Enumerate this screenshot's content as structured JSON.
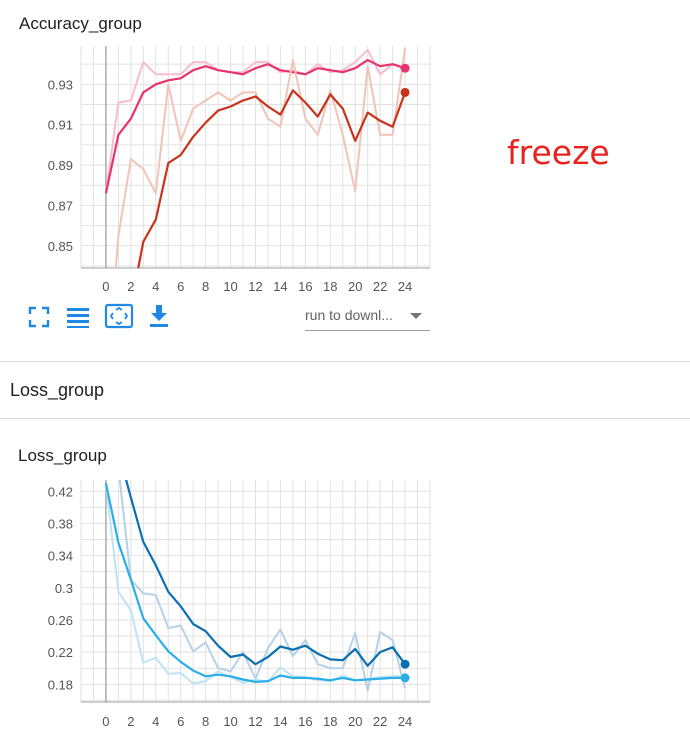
{
  "accuracy_card": {
    "title": "Accuracy_group"
  },
  "toolbar": {
    "fullscreen_icon": "fullscreen-icon",
    "legend_icon": "legend-list-icon",
    "fit_icon": "fit-domain-icon",
    "download_icon": "download-icon",
    "download_select_value": "run to downl..."
  },
  "annotation": {
    "text": "freeze",
    "color": "#e8231f"
  },
  "loss_section": {
    "title": "Loss_group"
  },
  "loss_card": {
    "title": "Loss_group"
  },
  "colors": {
    "accent": "#2196f3",
    "icon": "#1e88e5"
  },
  "chart_data": [
    {
      "type": "line",
      "title": "Accuracy_group",
      "xlabel": "",
      "ylabel": "",
      "xlim": [
        -2,
        26
      ],
      "ylim": [
        0.839,
        0.949
      ],
      "x_ticks": [
        0,
        2,
        4,
        6,
        8,
        10,
        12,
        14,
        16,
        18,
        20,
        22,
        24
      ],
      "y_ticks": [
        0.85,
        0.87,
        0.89,
        0.91,
        0.93
      ],
      "y_tick_labels": [
        "0.85",
        "0.87",
        "0.89",
        "0.91",
        "0.93"
      ],
      "grid": true,
      "series": [
        {
          "color": "#e8336d",
          "raw_color": "#f8bbd0",
          "x": [
            0,
            1,
            2,
            3,
            4,
            5,
            6,
            7,
            8,
            9,
            10,
            11,
            12,
            13,
            14,
            15,
            16,
            17,
            18,
            19,
            20,
            21,
            22,
            23,
            24
          ],
          "raw": [
            0.876,
            0.921,
            0.922,
            0.941,
            0.935,
            0.935,
            0.935,
            0.941,
            0.941,
            0.937,
            0.936,
            0.936,
            0.941,
            0.941,
            0.936,
            0.937,
            0.935,
            0.94,
            0.936,
            0.937,
            0.941,
            0.947,
            0.935,
            0.94,
            0.938
          ],
          "smoothed": [
            0.876,
            0.905,
            0.913,
            0.926,
            0.93,
            0.932,
            0.933,
            0.937,
            0.939,
            0.937,
            0.936,
            0.935,
            0.938,
            0.94,
            0.937,
            0.936,
            0.935,
            0.938,
            0.937,
            0.936,
            0.938,
            0.942,
            0.939,
            0.94,
            0.938
          ]
        },
        {
          "color": "#c8341b",
          "raw_color": "#f1c4b8",
          "x": [
            0,
            1,
            2,
            3,
            4,
            5,
            6,
            7,
            8,
            9,
            10,
            11,
            12,
            13,
            14,
            15,
            16,
            17,
            18,
            19,
            20,
            21,
            22,
            23,
            24
          ],
          "raw": [
            0.78,
            0.855,
            0.893,
            0.888,
            0.876,
            0.93,
            0.902,
            0.918,
            0.922,
            0.926,
            0.922,
            0.926,
            0.926,
            0.913,
            0.909,
            0.942,
            0.913,
            0.905,
            0.927,
            0.905,
            0.877,
            0.939,
            0.905,
            0.905,
            0.948
          ],
          "smoothed": [
            0.78,
            0.8,
            0.82,
            0.852,
            0.863,
            0.891,
            0.895,
            0.904,
            0.911,
            0.917,
            0.919,
            0.922,
            0.924,
            0.919,
            0.915,
            0.927,
            0.921,
            0.914,
            0.925,
            0.918,
            0.902,
            0.916,
            0.912,
            0.909,
            0.926
          ]
        }
      ]
    },
    {
      "type": "line",
      "title": "Loss_group",
      "xlabel": "",
      "ylabel": "",
      "xlim": [
        -2,
        26
      ],
      "ylim": [
        0.158,
        0.434
      ],
      "x_ticks": [
        0,
        2,
        4,
        6,
        8,
        10,
        12,
        14,
        16,
        18,
        20,
        22,
        24
      ],
      "y_ticks": [
        0.18,
        0.22,
        0.26,
        0.3,
        0.34,
        0.38,
        0.42
      ],
      "y_tick_labels": [
        "0.18",
        "0.22",
        "0.26",
        "0.3",
        "0.34",
        "0.38",
        "0.42"
      ],
      "grid": true,
      "series": [
        {
          "color": "#0b6fb0",
          "raw_color": "#b7d1e6",
          "x": [
            0,
            1,
            2,
            3,
            4,
            5,
            6,
            7,
            8,
            9,
            10,
            11,
            12,
            13,
            14,
            15,
            16,
            17,
            18,
            19,
            20,
            21,
            22,
            23,
            24
          ],
          "raw": [
            0.5,
            0.45,
            0.31,
            0.293,
            0.291,
            0.25,
            0.253,
            0.221,
            0.232,
            0.2,
            0.196,
            0.22,
            0.187,
            0.225,
            0.248,
            0.215,
            0.235,
            0.205,
            0.2,
            0.2,
            0.244,
            0.172,
            0.245,
            0.235,
            0.175
          ],
          "smoothed": [
            0.5,
            0.47,
            0.412,
            0.357,
            0.328,
            0.295,
            0.277,
            0.255,
            0.246,
            0.228,
            0.214,
            0.217,
            0.205,
            0.214,
            0.227,
            0.223,
            0.228,
            0.218,
            0.211,
            0.21,
            0.224,
            0.203,
            0.22,
            0.226,
            0.205
          ]
        },
        {
          "color": "#29aee8",
          "raw_color": "#bfe3f4",
          "x": [
            0,
            1,
            2,
            3,
            4,
            5,
            6,
            7,
            8,
            9,
            10,
            11,
            12,
            13,
            14,
            15,
            16,
            17,
            18,
            19,
            20,
            21,
            22,
            23,
            24
          ],
          "raw": [
            0.43,
            0.295,
            0.272,
            0.207,
            0.213,
            0.193,
            0.194,
            0.181,
            0.184,
            0.196,
            0.189,
            0.182,
            0.186,
            0.183,
            0.201,
            0.19,
            0.189,
            0.185,
            0.184,
            0.191,
            0.185,
            0.187,
            0.189,
            0.19,
            0.19
          ],
          "smoothed": [
            0.43,
            0.356,
            0.31,
            0.262,
            0.241,
            0.221,
            0.208,
            0.197,
            0.19,
            0.192,
            0.19,
            0.186,
            0.183,
            0.184,
            0.191,
            0.188,
            0.188,
            0.187,
            0.185,
            0.188,
            0.185,
            0.186,
            0.187,
            0.188,
            0.188
          ]
        }
      ]
    }
  ]
}
